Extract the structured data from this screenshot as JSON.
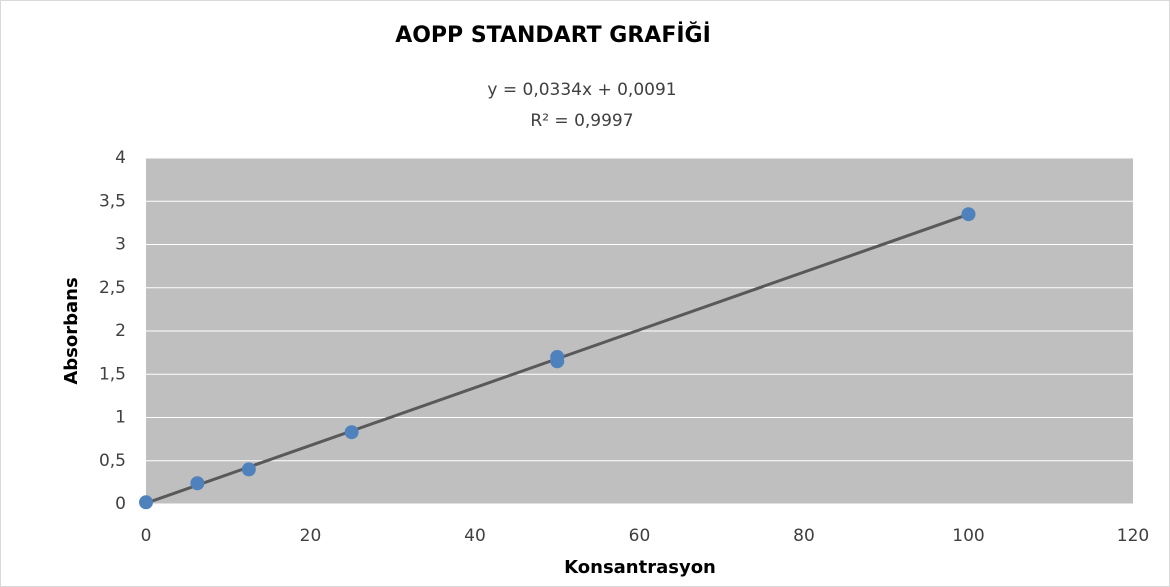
{
  "chart_data": {
    "type": "scatter",
    "title": "AOPP STANDART GRAFİĞİ",
    "xlabel": "Konsantrasyon",
    "ylabel": "Absorbans",
    "series": [
      {
        "color": "#4f81bd",
        "x": [
          0,
          6.25,
          12.5,
          25,
          50,
          50,
          100
        ],
        "values": [
          0.02,
          0.24,
          0.4,
          0.83,
          1.7,
          1.65,
          3.35
        ]
      }
    ],
    "trendline": {
      "equation": "y = 0,0334x + 0,0091",
      "r_squared_label": "R² = 0,9997",
      "slope": 0.0334,
      "intercept": 0.0091,
      "color": "#595959"
    },
    "xlim": [
      0,
      120
    ],
    "xticks": [
      0,
      20,
      40,
      60,
      80,
      100,
      120
    ],
    "ylim": [
      0,
      4
    ],
    "yticks": [
      0,
      {
        "value": 0.5,
        "label": "0,5"
      },
      1,
      {
        "value": 1.5,
        "label": "1,5"
      },
      2,
      {
        "value": 2.5,
        "label": "2,5"
      },
      3,
      {
        "value": 3.5,
        "label": "3,5"
      },
      4
    ],
    "grid": true,
    "plot_background": "#bfbfbf"
  }
}
